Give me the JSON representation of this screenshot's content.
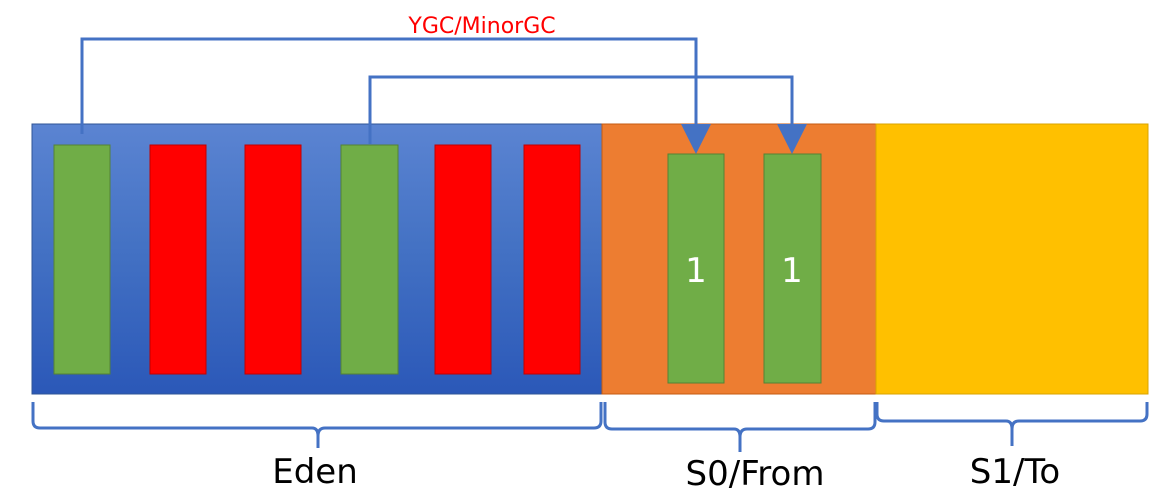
{
  "title": "YGC/MinorGC",
  "regions": {
    "eden": {
      "label": "Eden"
    },
    "s0": {
      "label": "S0/From"
    },
    "s1": {
      "label": "S1/To"
    }
  },
  "eden_objects": [
    "live",
    "dead",
    "dead",
    "live",
    "dead",
    "dead"
  ],
  "survivor_objects": [
    {
      "age": "1"
    },
    {
      "age": "1"
    }
  ],
  "colors": {
    "eden": "#4472c4",
    "survivor_from": "#ed7d31",
    "survivor_to": "#ffc000",
    "live": "#70ad47",
    "dead": "#ff0000",
    "arrow": "#4472c4",
    "title": "#ff0000"
  }
}
